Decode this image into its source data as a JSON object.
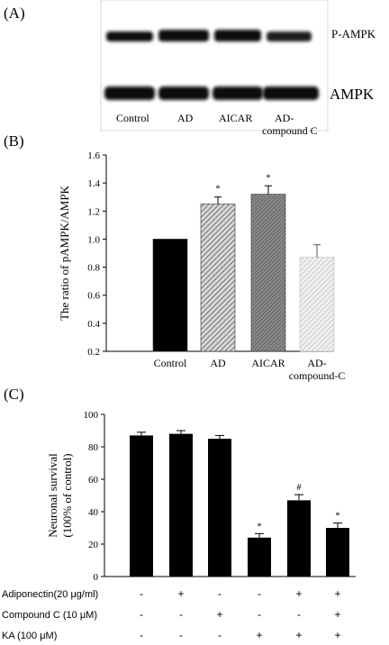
{
  "panels": {
    "a": {
      "letter": "(A)",
      "band_labels": [
        "P-AMPK",
        "AMPK"
      ],
      "lanes": [
        "Control",
        "AD",
        "AICAR",
        "AD-",
        "compound C"
      ]
    },
    "b": {
      "letter": "(B)"
    },
    "c": {
      "letter": "(C)"
    }
  },
  "chart_data": [
    {
      "type": "bar",
      "panel": "B",
      "ylabel": "The  ratio of pAMPK/AMPK",
      "xlabel": "",
      "ylim": [
        0.2,
        1.6
      ],
      "yticks": [
        "0.2",
        "0.4",
        "0.6",
        "0.8",
        "1.0",
        "1.2",
        "1.4",
        "1.6"
      ],
      "categories": [
        "Control",
        "AD",
        "AICAR",
        "AD-compound-C"
      ],
      "category_lines": [
        [
          "Control"
        ],
        [
          "AD"
        ],
        [
          "AICAR"
        ],
        [
          "AD-",
          "compound-C"
        ]
      ],
      "values": [
        1.0,
        1.25,
        1.32,
        0.87
      ],
      "errors": [
        0.0,
        0.05,
        0.06,
        0.09
      ],
      "annotations": [
        "",
        "*",
        "*",
        ""
      ],
      "bar_styles": [
        "solid-black",
        "hatch-dark",
        "hatch-gray",
        "hatch-light"
      ],
      "grid": false
    },
    {
      "type": "bar",
      "panel": "C",
      "ylabel": "Neuronal survival",
      "ylabel2": "(100% of control)",
      "xlabel": "",
      "ylim": [
        0,
        100
      ],
      "yticks": [
        "0",
        "20",
        "40",
        "60",
        "80",
        "100"
      ],
      "values": [
        87,
        88,
        85,
        24,
        47,
        30
      ],
      "errors": [
        2,
        2,
        2,
        2.5,
        3.5,
        3
      ],
      "annotations": [
        "",
        "",
        "",
        "*",
        "#",
        "*"
      ],
      "color": "#000000",
      "grid": false,
      "treatments": [
        {
          "label": "Adiponectin(20 μg/ml)",
          "signs": [
            "-",
            "+",
            "-",
            "-",
            "+",
            "+"
          ]
        },
        {
          "label": "Compound C (10 μM)",
          "signs": [
            "-",
            "-",
            "+",
            "-",
            "-",
            "+"
          ]
        },
        {
          "label": "KA (100 μM)",
          "signs": [
            "-",
            "-",
            "-",
            "+",
            "+",
            "+"
          ]
        }
      ]
    }
  ]
}
